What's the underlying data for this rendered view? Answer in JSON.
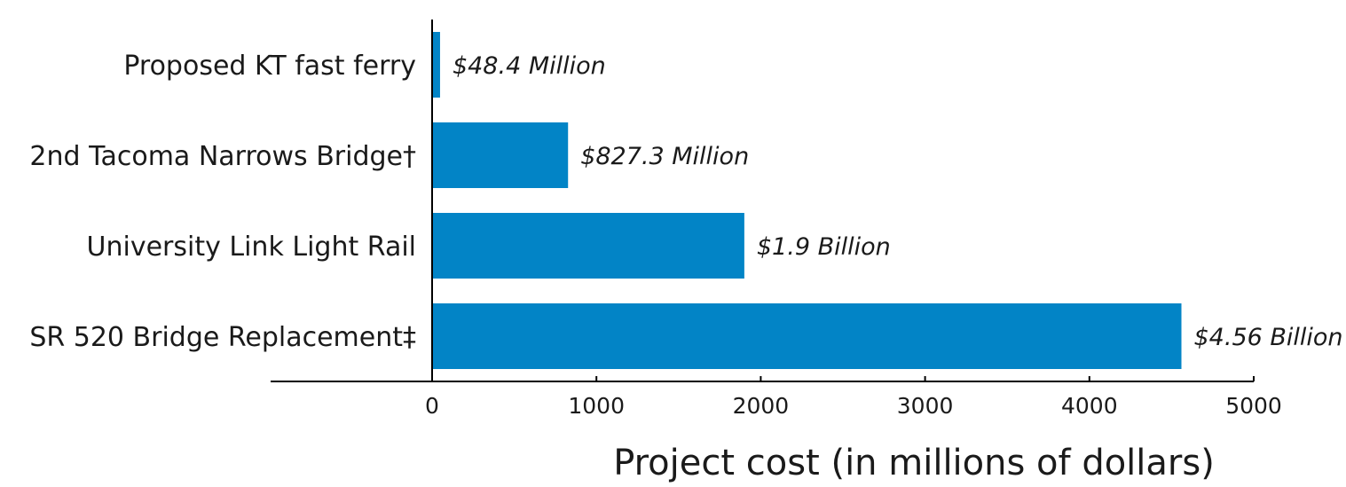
{
  "chart_data": {
    "type": "bar",
    "orientation": "horizontal",
    "categories": [
      "Proposed KT fast ferry",
      "2nd Tacoma Narrows Bridge†",
      "University Link Light Rail",
      "SR 520 Bridge Replacement‡"
    ],
    "values": [
      48.4,
      827.3,
      1900,
      4560
    ],
    "value_labels": [
      "$48.4 Million",
      "$827.3 Million",
      "$1.9 Billion",
      "$4.56 Billion"
    ],
    "xlabel": "Project cost (in millions of dollars)",
    "ylabel": "",
    "xlim": [
      0,
      5000
    ],
    "xticks": [
      0,
      1000,
      2000,
      3000,
      4000,
      5000
    ],
    "grid": false,
    "bar_color": "#0284c6"
  }
}
